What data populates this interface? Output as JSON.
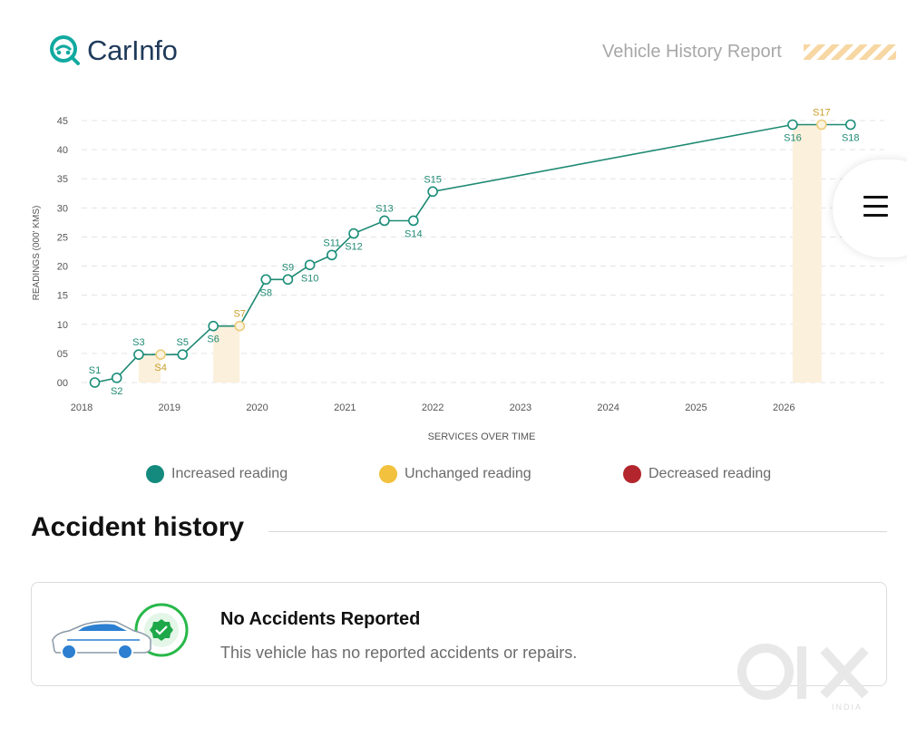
{
  "header": {
    "logo_text": "CarInfo",
    "report_title": "Vehicle History Report"
  },
  "chart_data": {
    "type": "line",
    "xlabel": "SERVICES OVER TIME",
    "ylabel": "READINGS (000' KMS)",
    "y_ticks": [
      "00",
      "05",
      "10",
      "15",
      "20",
      "25",
      "30",
      "35",
      "40",
      "45"
    ],
    "x_ticks": [
      "2018",
      "2019",
      "2020",
      "2021",
      "2022",
      "2023",
      "2024",
      "2025",
      "2026"
    ],
    "x_range": [
      2018.0,
      2027.0
    ],
    "ylim": [
      0,
      45
    ],
    "grid": true,
    "points": [
      {
        "label": "S1",
        "x": 2018.15,
        "y": 0,
        "status": "increased"
      },
      {
        "label": "S2",
        "x": 2018.4,
        "y": 0.8,
        "status": "increased"
      },
      {
        "label": "S3",
        "x": 2018.65,
        "y": 4.8,
        "status": "increased"
      },
      {
        "label": "S4",
        "x": 2018.9,
        "y": 4.8,
        "status": "unchanged"
      },
      {
        "label": "S5",
        "x": 2019.15,
        "y": 4.8,
        "status": "increased"
      },
      {
        "label": "S6",
        "x": 2019.5,
        "y": 9.7,
        "status": "increased"
      },
      {
        "label": "S7",
        "x": 2019.8,
        "y": 9.7,
        "status": "unchanged"
      },
      {
        "label": "S8",
        "x": 2020.1,
        "y": 17.7,
        "status": "increased"
      },
      {
        "label": "S9",
        "x": 2020.35,
        "y": 17.7,
        "status": "increased"
      },
      {
        "label": "S10",
        "x": 2020.6,
        "y": 20.2,
        "status": "increased"
      },
      {
        "label": "S11",
        "x": 2020.85,
        "y": 21.9,
        "status": "increased"
      },
      {
        "label": "S12",
        "x": 2021.1,
        "y": 25.6,
        "status": "increased"
      },
      {
        "label": "S13",
        "x": 2021.45,
        "y": 27.8,
        "status": "increased"
      },
      {
        "label": "S14",
        "x": 2021.78,
        "y": 27.8,
        "status": "increased"
      },
      {
        "label": "S15",
        "x": 2022.0,
        "y": 32.8,
        "status": "increased"
      },
      {
        "label": "S16",
        "x": 2026.1,
        "y": 44.3,
        "status": "increased"
      },
      {
        "label": "S17",
        "x": 2026.43,
        "y": 44.3,
        "status": "unchanged"
      },
      {
        "label": "S18",
        "x": 2026.76,
        "y": 44.3,
        "status": "increased"
      }
    ],
    "colors": {
      "increased": "#1a8d79",
      "unchanged": "#f2c13d",
      "decreased": "#b3262d",
      "line": "#1e8a73",
      "band": "#fbf0dc"
    }
  },
  "legend": [
    {
      "label": "Increased reading",
      "color": "#138a7d"
    },
    {
      "label": "Unchanged reading",
      "color": "#f2c13d"
    },
    {
      "label": "Decreased reading",
      "color": "#b3262d"
    }
  ],
  "accident": {
    "title": "Accident history",
    "card_title": "No Accidents Reported",
    "card_subtitle": "This vehicle has no reported accidents or repairs."
  },
  "watermark": {
    "text": "INDIA"
  }
}
